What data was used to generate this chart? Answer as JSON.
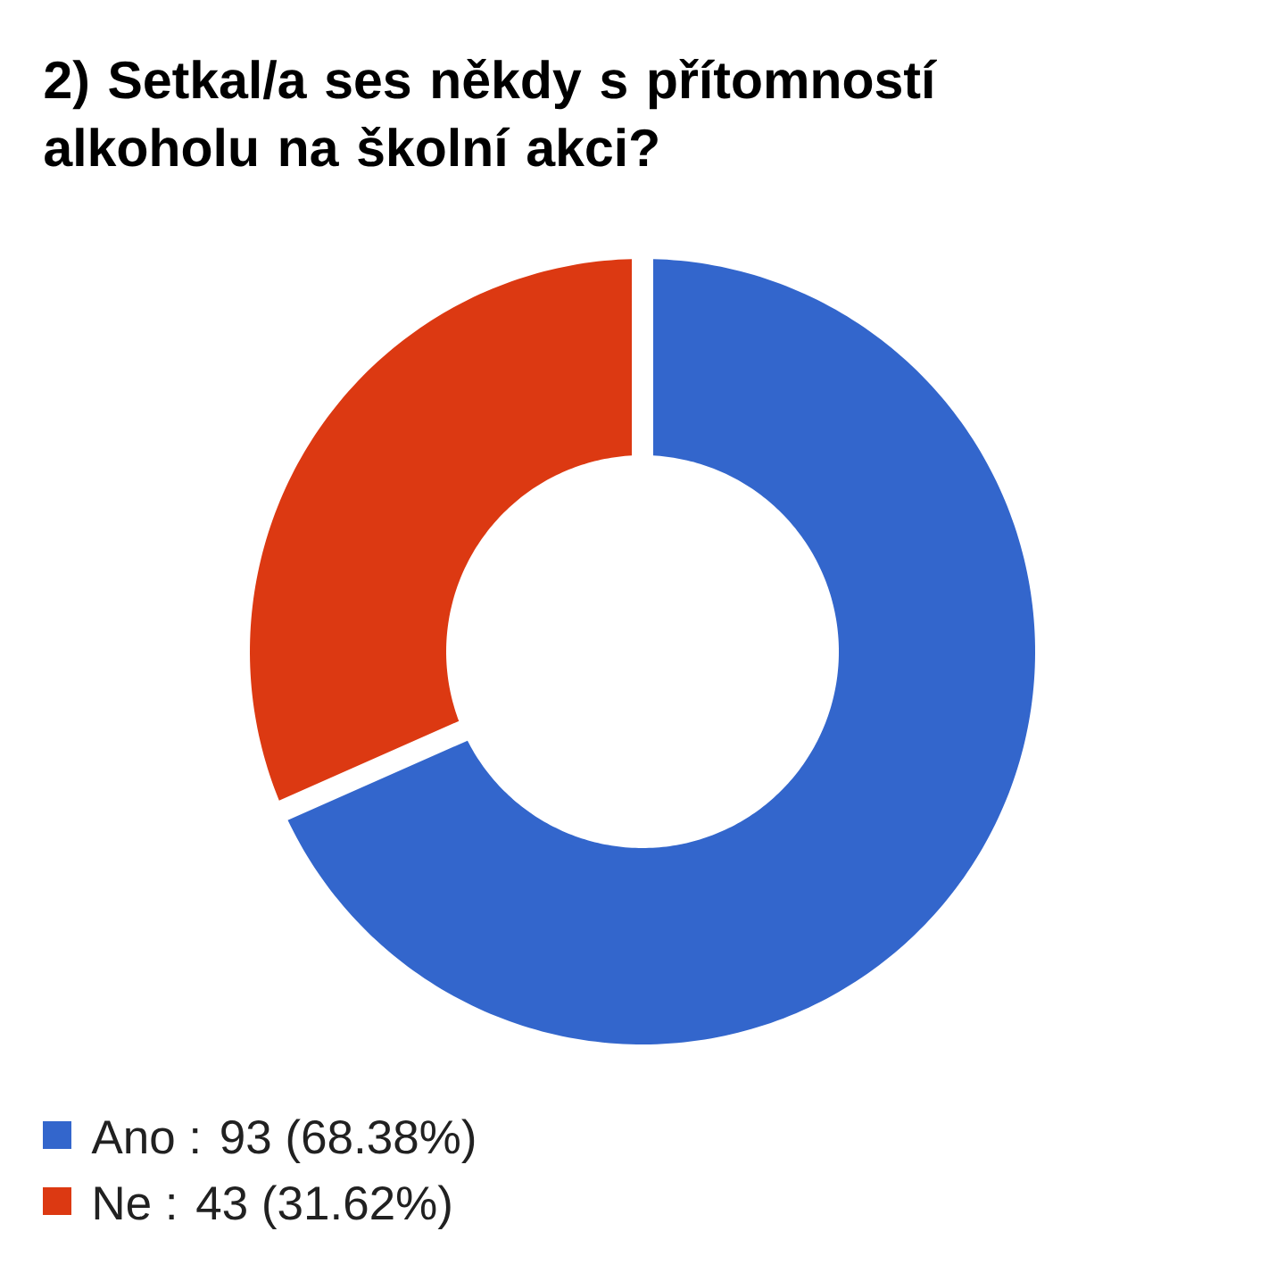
{
  "chart_data": {
    "type": "donut",
    "title": "2) Setkal/a ses někdy s přítomností alkoholu na školní akci?",
    "categories": [
      "Ano : 93 (68.38%)",
      "Ne : 43 (31.62%)"
    ],
    "values": [
      93,
      43
    ],
    "colors": [
      "#3366cc",
      "#dc3912"
    ],
    "legend": "bottom"
  }
}
